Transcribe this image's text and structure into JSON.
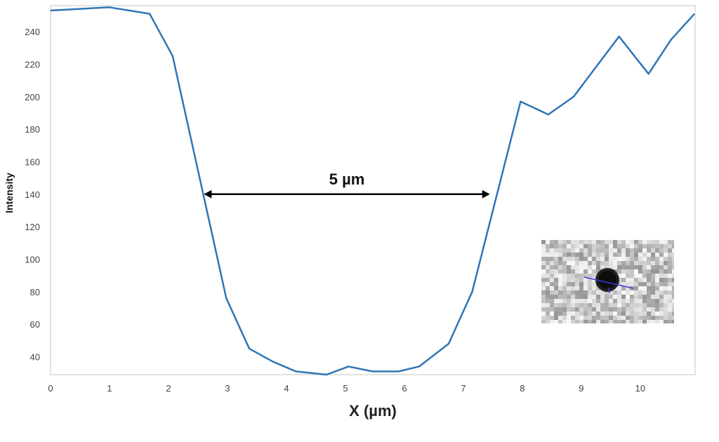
{
  "chart_data": {
    "type": "line",
    "title": "",
    "xlabel": "X (µm)",
    "ylabel": "Intensity",
    "xlim": [
      0,
      10.93
    ],
    "ylim": [
      29,
      256
    ],
    "grid": false,
    "legend": "none",
    "x_ticks": [
      0,
      1,
      2,
      3,
      4,
      5,
      6,
      7,
      8,
      9,
      10
    ],
    "y_ticks": [
      40,
      60,
      80,
      100,
      120,
      140,
      160,
      180,
      200,
      220,
      240
    ],
    "series": [
      {
        "color": "#2e75b6",
        "x": [
          0,
          0.99,
          1.68,
          2.07,
          2.98,
          3.37,
          3.77,
          4.16,
          4.68,
          5.05,
          5.46,
          5.9,
          6.25,
          6.75,
          7.15,
          7.97,
          8.44,
          8.87,
          9.64,
          10.14,
          10.52,
          10.92
        ],
        "y": [
          253,
          255,
          251,
          225,
          76,
          45,
          37,
          31,
          29,
          34,
          31,
          31,
          34,
          48,
          80,
          197,
          189,
          200,
          237,
          214,
          235,
          251
        ]
      }
    ],
    "annotations": [
      {
        "type": "double-arrow",
        "x_from": 2.6,
        "x_to": 7.45,
        "y": 140,
        "label": "5 µm",
        "color": "#000000"
      }
    ],
    "inset": {
      "kind": "grayscale micrograph with dark particle and blue profile line",
      "line_color": "#3a3adf"
    }
  }
}
